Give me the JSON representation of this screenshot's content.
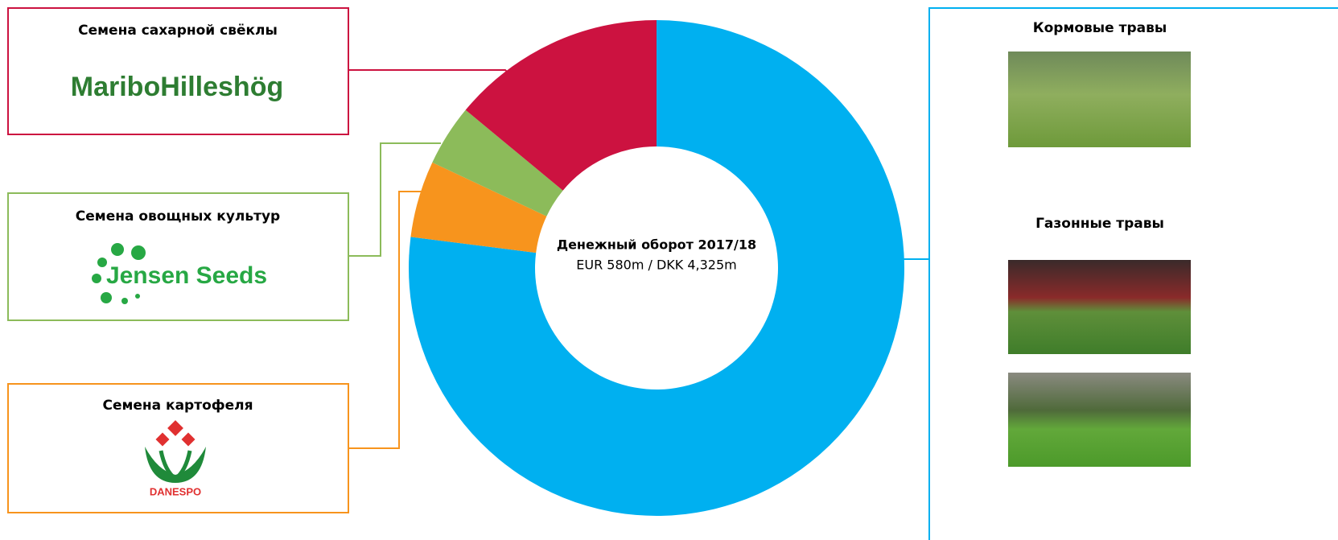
{
  "chart_data": {
    "type": "donut",
    "categories": [
      null,
      "Семена картофеля",
      "Семена овощных культур",
      "Семена сахарной свёклы"
    ],
    "values": [
      77,
      5,
      4,
      14
    ],
    "colors": [
      "#00b0f0",
      "#f7941d",
      "#8cbb5a",
      "#cc1240"
    ],
    "center_title": "Денежный оборот 2017/18",
    "center_subtitle": "EUR 580m / DKK 4,325m"
  },
  "logos": [
    "DANESPO",
    "Jensen Seeds",
    "MariboHilleshög"
  ],
  "right_panel": [
    "Кормовые травы",
    "Газонные травы"
  ]
}
